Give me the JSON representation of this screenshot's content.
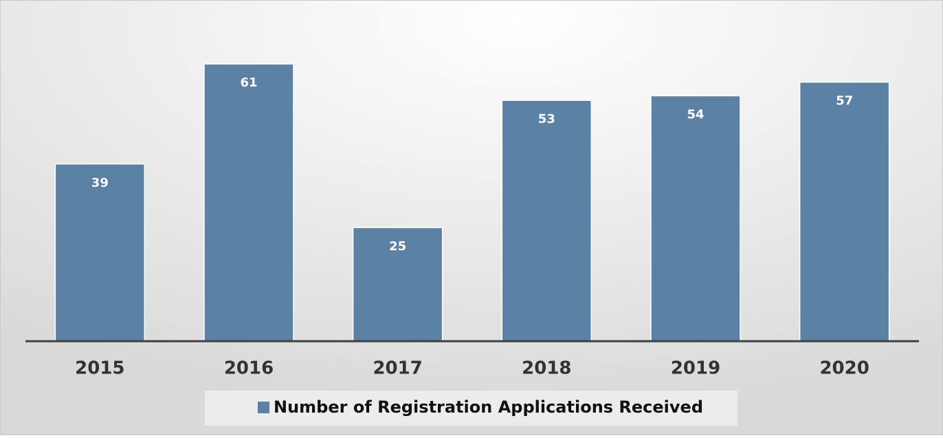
{
  "chart_data": {
    "type": "bar",
    "categories": [
      "2015",
      "2016",
      "2017",
      "2018",
      "2019",
      "2020"
    ],
    "values": [
      39,
      61,
      25,
      53,
      54,
      57
    ],
    "color": "#5b81a5",
    "legend": {
      "name": "Number of Registration Applications Received",
      "position": "bottom"
    }
  }
}
